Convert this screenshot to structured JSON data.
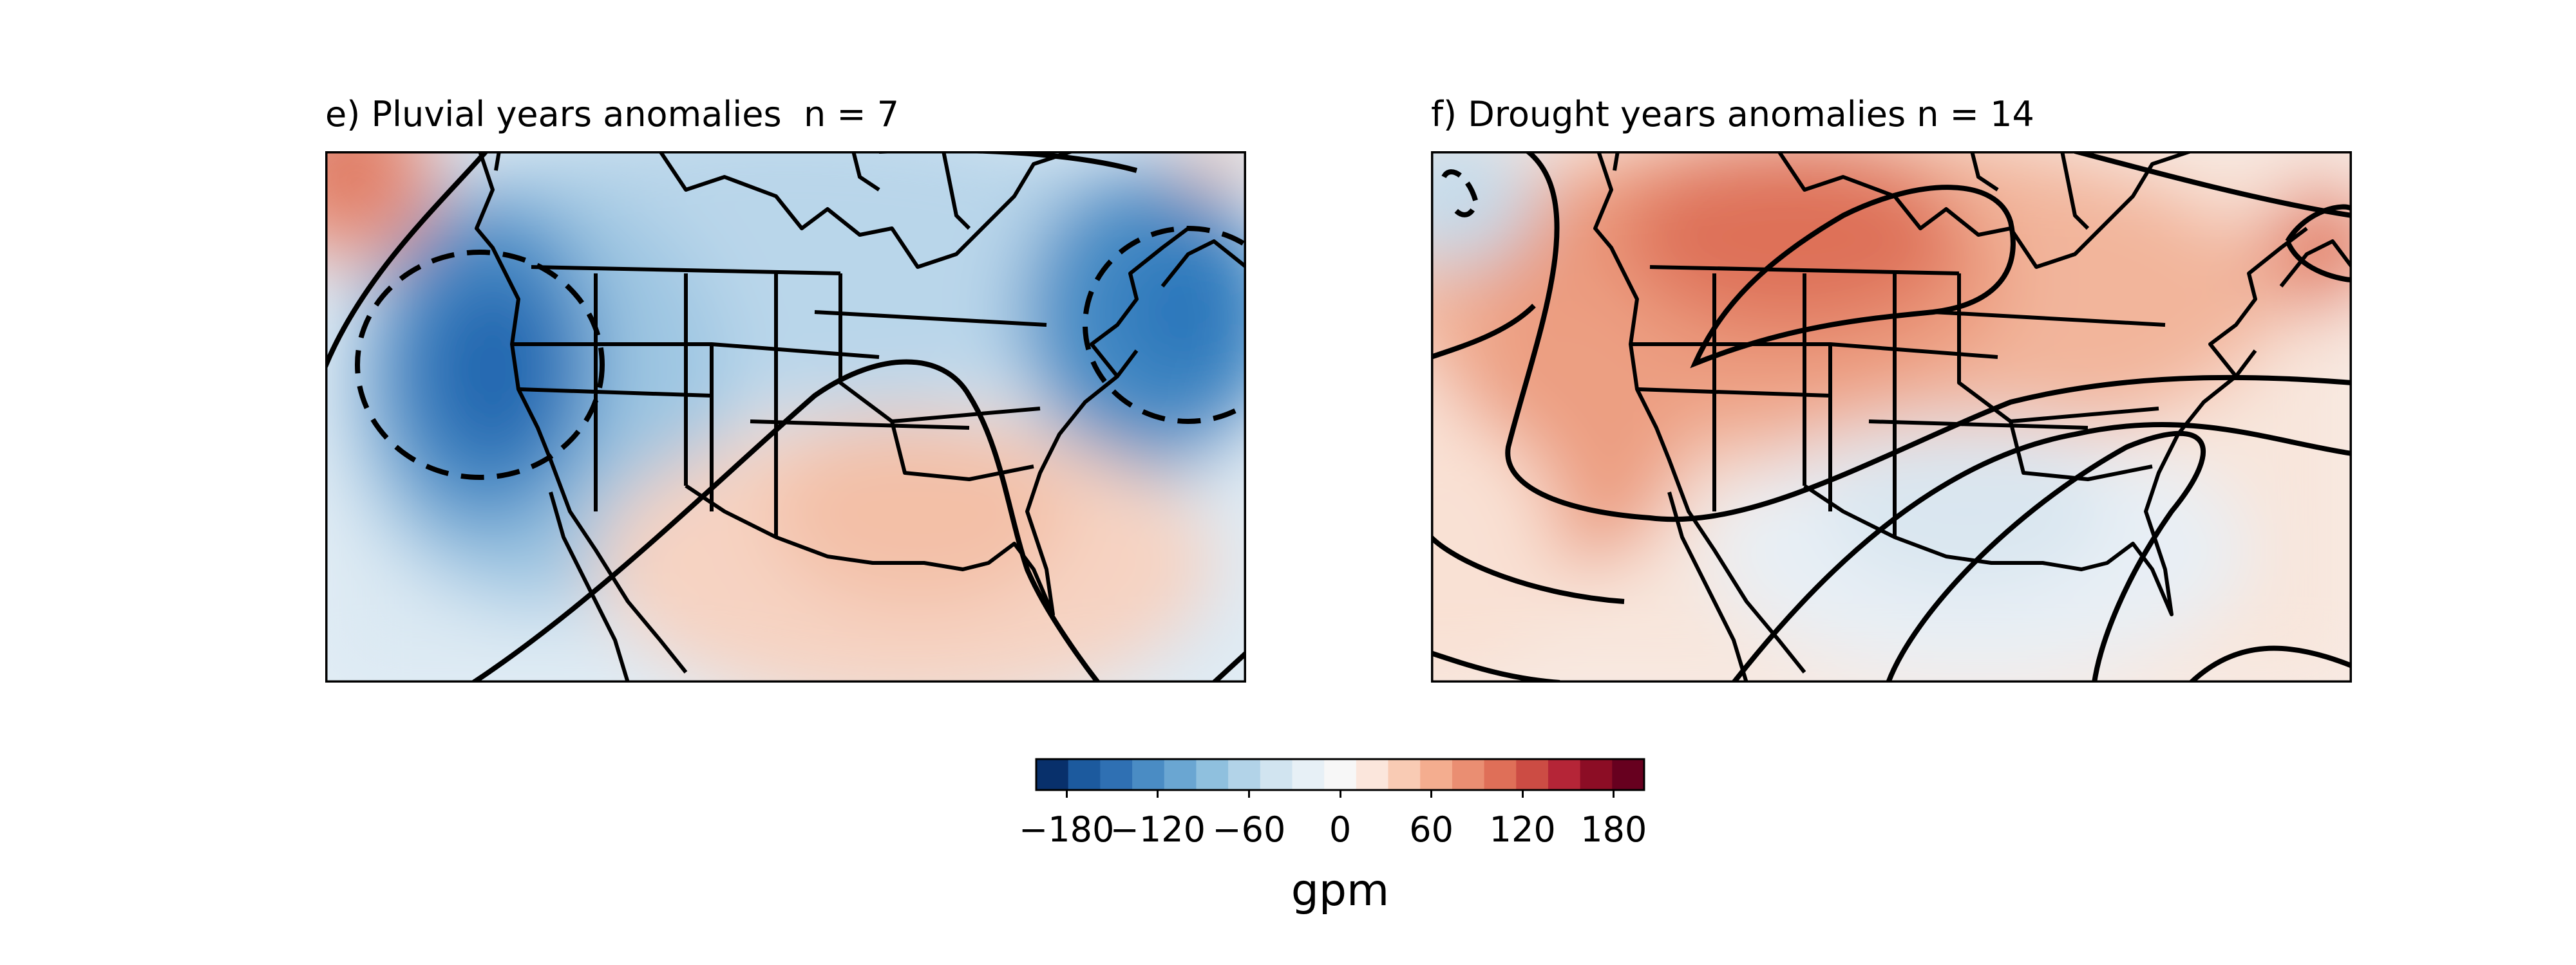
{
  "panels": [
    {
      "title": "e) Pluvial years anomalies  n = 7"
    },
    {
      "title": "f) Drought years anomalies n = 14"
    }
  ],
  "colorbar": {
    "label": "gpm",
    "ticks": [
      "−180",
      "−120",
      "−60",
      "0",
      "60",
      "120",
      "180"
    ],
    "tick_values": [
      -180,
      -120,
      -60,
      0,
      60,
      120,
      180
    ],
    "range": [
      -200,
      200
    ],
    "colors": [
      "#08306b",
      "#1c5a9e",
      "#2f70b3",
      "#4a8cc4",
      "#6aa6d2",
      "#8fc0de",
      "#b2d3e8",
      "#d1e4f0",
      "#e7f0f6",
      "#f7f7f7",
      "#fbe6dc",
      "#f9cbb4",
      "#f4ad8f",
      "#ea8e72",
      "#df6f58",
      "#cc4c44",
      "#b52537",
      "#8c0d25",
      "#67001f"
    ]
  }
}
